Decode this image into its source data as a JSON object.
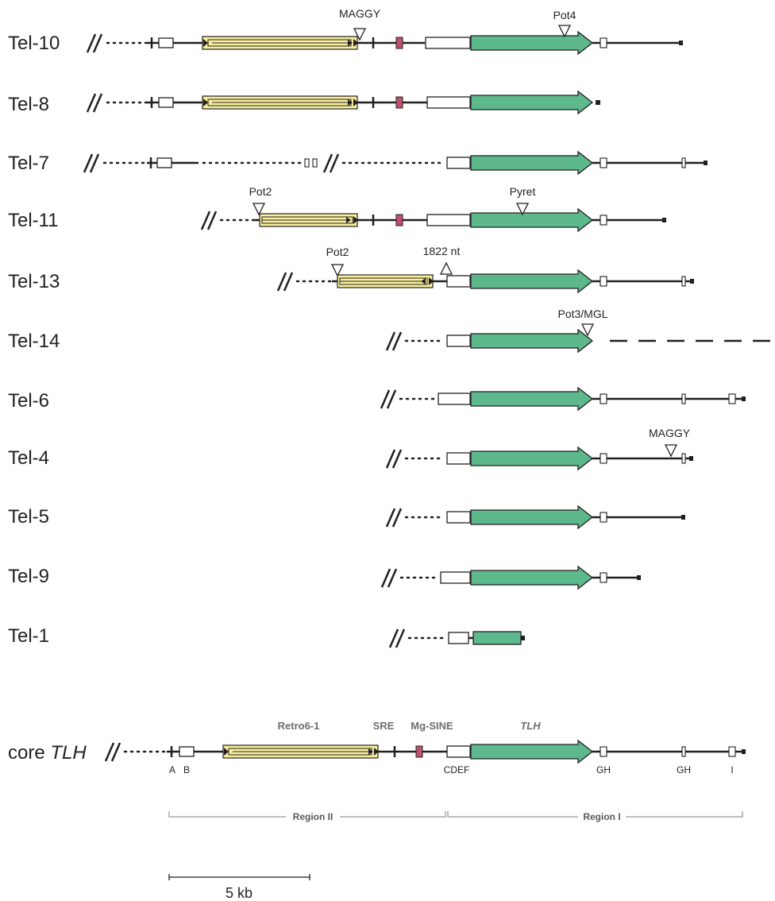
{
  "rows": [
    {
      "label": "Tel-10"
    },
    {
      "label": "Tel-8"
    },
    {
      "label": "Tel-7"
    },
    {
      "label": "Tel-11"
    },
    {
      "label": "Tel-13"
    },
    {
      "label": "Tel-14"
    },
    {
      "label": "Tel-6"
    },
    {
      "label": "Tel-4"
    },
    {
      "label": "Tel-5"
    },
    {
      "label": "Tel-9"
    },
    {
      "label": "Tel-1"
    }
  ],
  "insertions": {
    "tel10_maggy": "MAGGY",
    "tel10_pot4": "Pot4",
    "tel11_pot2": "Pot2",
    "tel11_pyret": "Pyret",
    "tel13_pot2": "Pot2",
    "tel13_deletion": "1822 nt",
    "tel14_pot3": "Pot3/MGL",
    "tel4_maggy": "MAGGY"
  },
  "core": {
    "label_prefix": "core ",
    "label_italic": "TLH",
    "element_labels": {
      "retro": "Retro6-1",
      "sre": "SRE",
      "sine": "Mg-SINE",
      "tlh": "TLH"
    },
    "sites": [
      "A",
      "B",
      "CDEF",
      "GH",
      "GH",
      "I"
    ],
    "regions": [
      "Region II",
      "Region I"
    ]
  },
  "scale_bar": "5 kb",
  "colors": {
    "retrotransposon": "#f7ef9c",
    "tlh_gene": "#5db88c",
    "mg_sine": "#c0506e",
    "region_bracket": "#a7a9ac",
    "line": "#231f20"
  }
}
